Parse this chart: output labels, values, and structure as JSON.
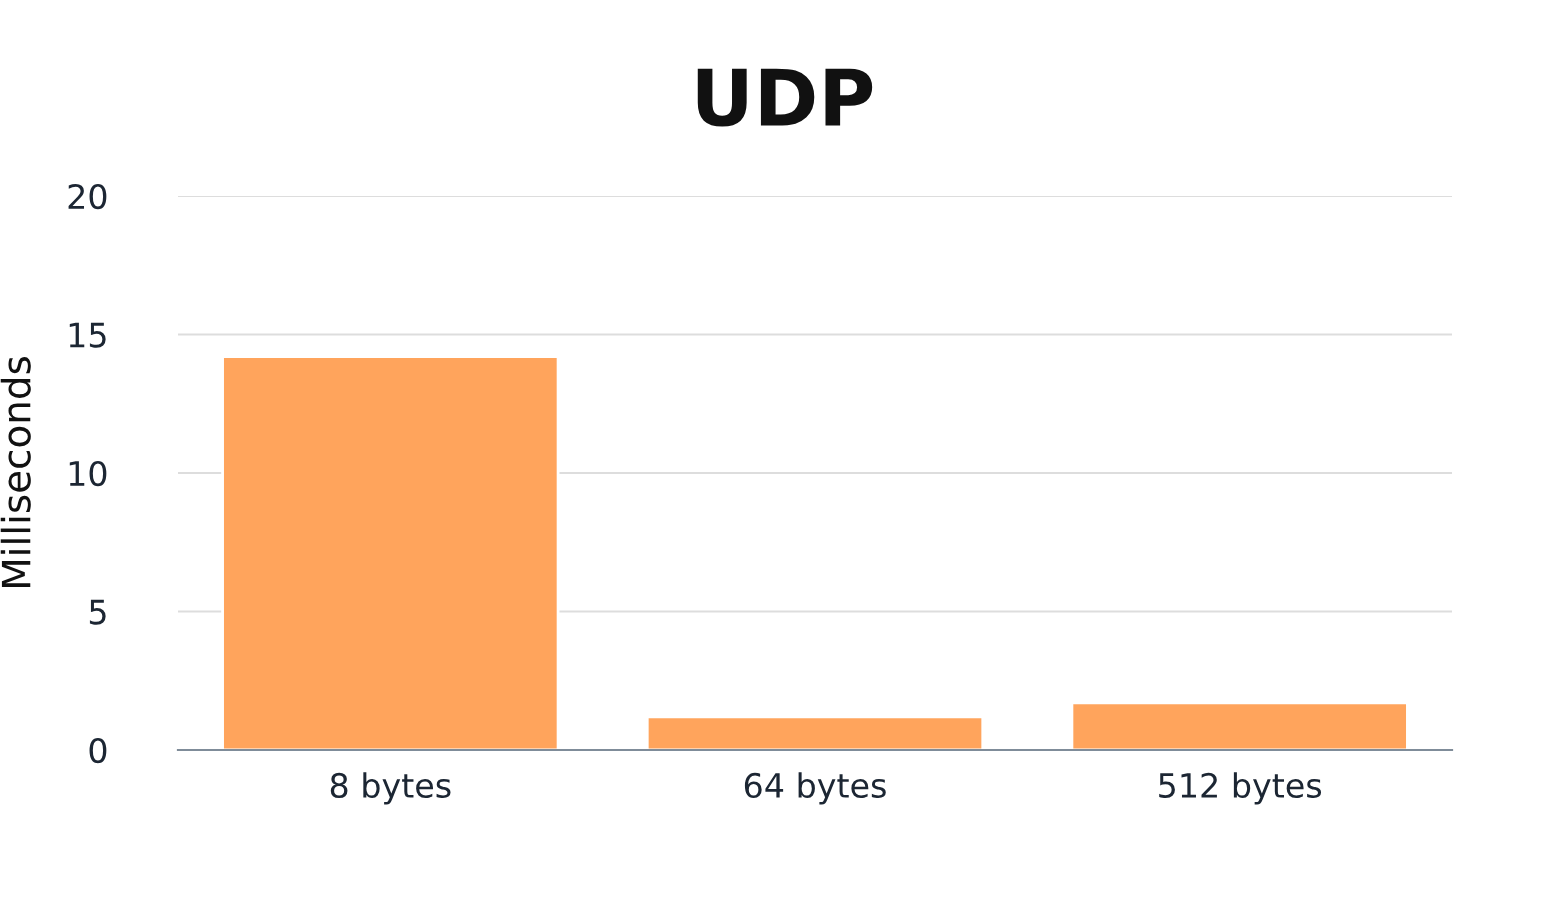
{
  "chart_data": {
    "type": "bar",
    "title": "UDP",
    "ylabel": "Milliseconds",
    "categories": [
      "8 bytes",
      "64 bytes",
      "512 bytes"
    ],
    "values": [
      14.2,
      1.2,
      1.7
    ],
    "color": "#ffa45c",
    "ylim": [
      0,
      20
    ],
    "yticks": [
      0,
      5,
      10,
      15,
      20
    ],
    "grid": "y"
  }
}
